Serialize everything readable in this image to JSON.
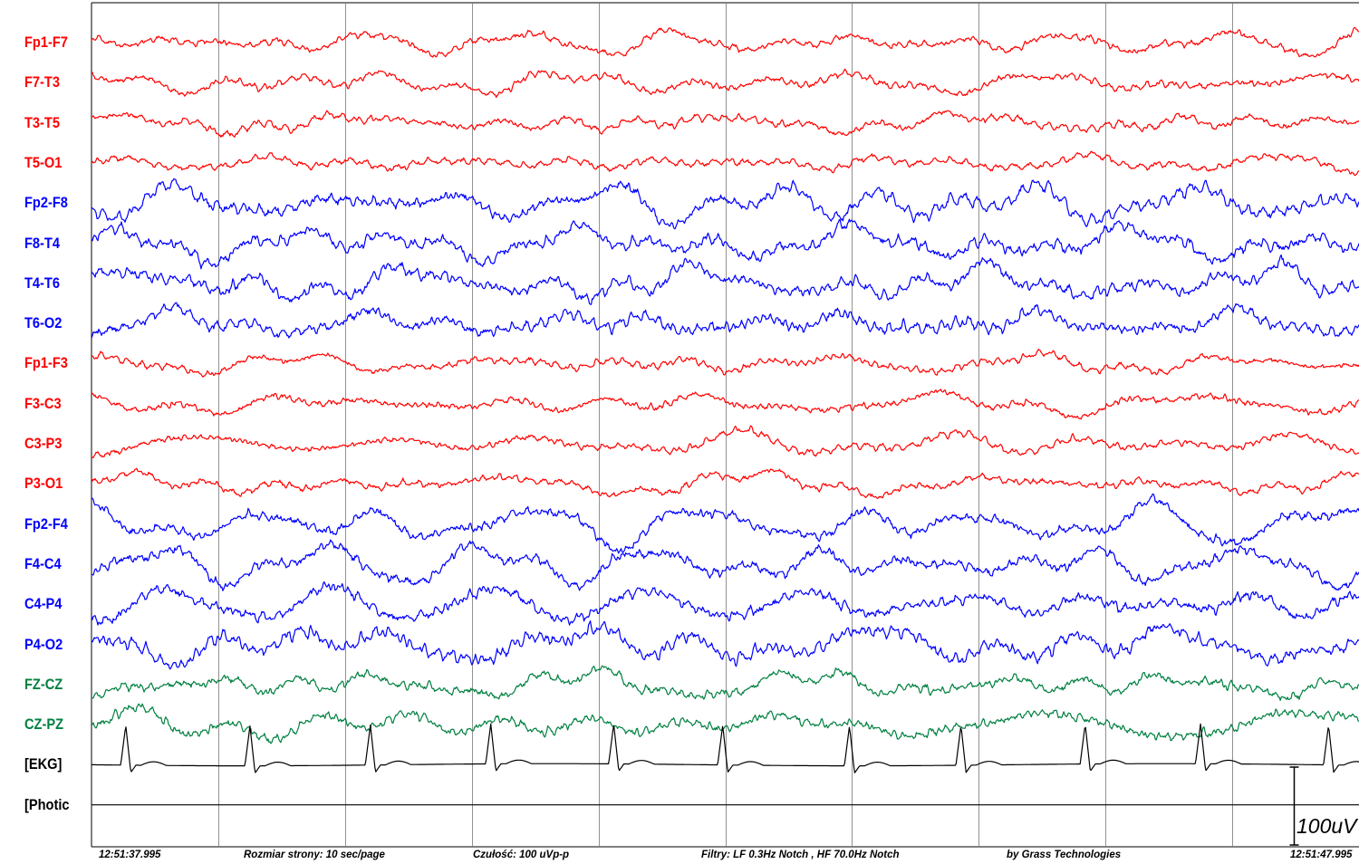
{
  "chart_data": {
    "type": "line",
    "title": "",
    "xlabel": "",
    "ylabel": "",
    "grid": true,
    "legend": "left",
    "page_seconds": 10,
    "time_start": "12:51:37.995",
    "time_end": "12:51:47.995",
    "channels": [
      {
        "name": "Fp1-F7",
        "color": "#ff0000"
      },
      {
        "name": "F7-T3",
        "color": "#ff0000"
      },
      {
        "name": "T3-T5",
        "color": "#ff0000"
      },
      {
        "name": "T5-O1",
        "color": "#ff0000"
      },
      {
        "name": "Fp2-F8",
        "color": "#0000ff"
      },
      {
        "name": "F8-T4",
        "color": "#0000ff"
      },
      {
        "name": "T4-T6",
        "color": "#0000ff"
      },
      {
        "name": "T6-O2",
        "color": "#0000ff"
      },
      {
        "name": "Fp1-F3",
        "color": "#ff0000"
      },
      {
        "name": "F3-C3",
        "color": "#ff0000"
      },
      {
        "name": "C3-P3",
        "color": "#ff0000"
      },
      {
        "name": "P3-O1",
        "color": "#ff0000"
      },
      {
        "name": "Fp2-F4",
        "color": "#0000ff"
      },
      {
        "name": "F4-C4",
        "color": "#0000ff"
      },
      {
        "name": "C4-P4",
        "color": "#0000ff"
      },
      {
        "name": "P4-O2",
        "color": "#0000ff"
      },
      {
        "name": "FZ-CZ",
        "color": "#008040"
      },
      {
        "name": "CZ-PZ",
        "color": "#008040"
      },
      {
        "name": "[EKG]",
        "color": "#000000"
      },
      {
        "name": "[Photic",
        "color": "#000000"
      }
    ],
    "ekg_beats_s": [
      0.27,
      1.25,
      2.2,
      3.15,
      4.12,
      4.98,
      5.98,
      6.86,
      7.84,
      8.75,
      9.76
    ],
    "scale_bar": "100uV"
  },
  "footer": {
    "time_start": "12:51:37.995",
    "page_size": "Rozmiar strony: 10 sec/page",
    "sensitivity": "Czułość:  100 uVp-p",
    "filters": "Filtry: LF  0.3Hz Notch , HF 70.0Hz Notch",
    "vendor": "by Grass Technologies",
    "time_end": "12:51:47.995"
  }
}
